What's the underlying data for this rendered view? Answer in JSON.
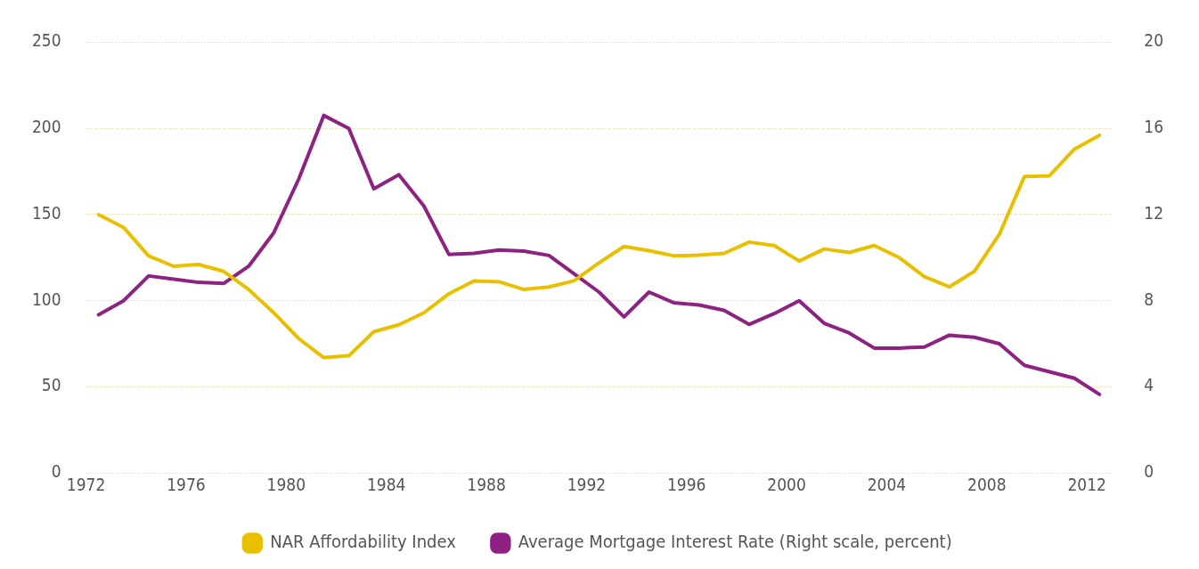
{
  "chart_data": {
    "type": "line",
    "x": [
      1972.5,
      1973.5,
      1974.5,
      1975.5,
      1976.5,
      1977.5,
      1978.5,
      1979.5,
      1980.5,
      1981.5,
      1982.5,
      1983.5,
      1984.5,
      1985.5,
      1986.5,
      1987.5,
      1988.5,
      1989.5,
      1990.5,
      1991.5,
      1992.5,
      1993.5,
      1994.5,
      1995.5,
      1996.5,
      1997.5,
      1998.5,
      1999.5,
      2000.5,
      2001.5,
      2002.5,
      2003.5,
      2004.5,
      2005.5,
      2006.5,
      2007.5,
      2008.5,
      2009.5,
      2010.5,
      2011.5,
      2012.5
    ],
    "series": [
      {
        "name": "NAR Affordability Index",
        "color": "#e8c000",
        "values": [
          150,
          142.5,
          126,
          120,
          121,
          117,
          106.5,
          93,
          78,
          67,
          68,
          82,
          86,
          93,
          104,
          111.5,
          111,
          106.5,
          108,
          111.5,
          122,
          131.5,
          129,
          126,
          126.5,
          127.5,
          134,
          132,
          123,
          130,
          128,
          132,
          125,
          114,
          108,
          117,
          138.5,
          172,
          172.5,
          188,
          196
        ]
      },
      {
        "name": "Average Mortgage Interest Rate (Right scale, percent)",
        "color": "#8e2282",
        "axis": "y2",
        "values": [
          7.35,
          8.0,
          9.15,
          9.0,
          8.85,
          8.8,
          9.6,
          11.15,
          13.65,
          16.6,
          16.0,
          13.2,
          13.85,
          12.4,
          10.15,
          10.2,
          10.35,
          10.3,
          10.1,
          9.25,
          8.4,
          7.25,
          8.4,
          7.9,
          7.8,
          7.55,
          6.9,
          7.4,
          8.0,
          6.95,
          6.5,
          5.8,
          5.8,
          5.85,
          6.4,
          6.3,
          6.0,
          5.0,
          4.7,
          4.4,
          3.65
        ]
      }
    ],
    "xlim": [
      1972,
      2013
    ],
    "xticks": [
      1972,
      1976,
      1980,
      1984,
      1988,
      1992,
      1996,
      2000,
      2004,
      2008,
      2012
    ],
    "ylim": [
      0,
      250
    ],
    "yticks": [
      0,
      50,
      100,
      150,
      200,
      250
    ],
    "y2lim": [
      0,
      20
    ],
    "y2ticks": [
      0,
      4,
      8,
      12,
      16,
      20
    ],
    "grid": "y",
    "legend": "bottom",
    "marker": "none",
    "line_style": "solid"
  }
}
